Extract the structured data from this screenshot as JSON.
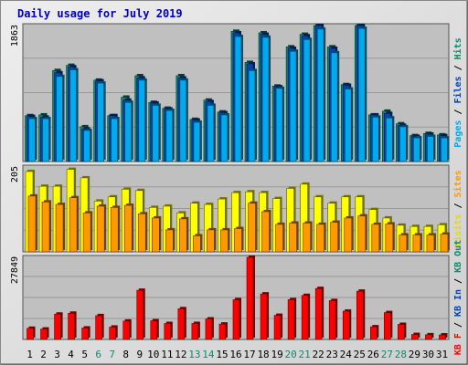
{
  "chart_data": [
    {
      "type": "bar",
      "title": "Daily usage for July 2019",
      "categories": [
        "1",
        "2",
        "3",
        "4",
        "5",
        "6",
        "7",
        "8",
        "9",
        "10",
        "11",
        "12",
        "13",
        "14",
        "15",
        "16",
        "17",
        "18",
        "19",
        "20",
        "21",
        "22",
        "23",
        "24",
        "25",
        "26",
        "27",
        "28",
        "29",
        "30",
        "31"
      ],
      "weekend_days": [
        "6",
        "7",
        "13",
        "14",
        "20",
        "21",
        "27",
        "28"
      ],
      "ylim": [
        0,
        1863
      ],
      "ytick_label": "1863",
      "side_labels": [
        {
          "text": "Pages",
          "color": "#00aaee"
        },
        {
          "text": "Files",
          "color": "#0044bb"
        },
        {
          "text": "Hits",
          "color": "#11886a"
        }
      ],
      "series": [
        {
          "name": "Hits",
          "color": "#11886a",
          "values": [
            620,
            630,
            1230,
            1300,
            470,
            1100,
            620,
            870,
            1160,
            800,
            720,
            1160,
            570,
            830,
            670,
            1760,
            1340,
            1740,
            1020,
            1550,
            1720,
            1860,
            1550,
            1040,
            1890,
            630,
            680,
            510,
            350,
            380,
            360
          ]
        },
        {
          "name": "Files",
          "color": "#0044bb",
          "values": [
            610,
            600,
            1200,
            1280,
            440,
            1090,
            620,
            830,
            1130,
            790,
            710,
            1130,
            560,
            810,
            660,
            1740,
            1320,
            1720,
            1010,
            1530,
            1700,
            1840,
            1530,
            1030,
            1870,
            630,
            650,
            490,
            340,
            370,
            350
          ]
        },
        {
          "name": "Pages",
          "color": "#00aaee",
          "values": [
            580,
            580,
            1150,
            1240,
            420,
            1060,
            580,
            800,
            1100,
            760,
            690,
            1100,
            530,
            760,
            630,
            1690,
            1230,
            1680,
            990,
            1490,
            1650,
            1790,
            1470,
            980,
            1800,
            600,
            590,
            470,
            320,
            340,
            320
          ]
        }
      ]
    },
    {
      "type": "bar",
      "ylim": [
        0,
        205
      ],
      "ytick_label": "205",
      "side_labels": [
        {
          "text": "Visits",
          "color": "#dddd00"
        },
        {
          "text": "Sites",
          "color": "#ff9900"
        }
      ],
      "series": [
        {
          "name": "Visits",
          "color": "#ffff00",
          "values": [
            190,
            155,
            155,
            195,
            175,
            120,
            130,
            148,
            145,
            105,
            108,
            92,
            115,
            112,
            125,
            140,
            142,
            140,
            126,
            150,
            160,
            130,
            115,
            130,
            130,
            100,
            80,
            63,
            60,
            60,
            64
          ]
        },
        {
          "name": "Sites",
          "color": "#ff9900",
          "values": [
            132,
            118,
            112,
            128,
            92,
            108,
            105,
            110,
            90,
            80,
            52,
            78,
            38,
            52,
            52,
            55,
            115,
            95,
            65,
            68,
            68,
            65,
            70,
            80,
            85,
            65,
            66,
            40,
            40,
            40,
            42
          ]
        }
      ]
    },
    {
      "type": "bar",
      "ylim": [
        0,
        27849
      ],
      "ytick_label": "27849",
      "side_labels": [
        {
          "text": "KB F",
          "color": "#ff0000"
        },
        {
          "text": "KB In",
          "color": "#0044bb"
        },
        {
          "text": "KB Out",
          "color": "#11886a"
        }
      ],
      "series": [
        {
          "name": "KB F",
          "color": "#ff0000",
          "values": [
            3700,
            3450,
            8400,
            8700,
            3800,
            7900,
            4100,
            6100,
            16300,
            6200,
            5300,
            10200,
            5300,
            6800,
            5100,
            13200,
            27700,
            15100,
            8000,
            13200,
            14600,
            16900,
            12900,
            9400,
            16000,
            4200,
            8900,
            5000,
            1650,
            1550,
            1500
          ]
        }
      ]
    }
  ]
}
